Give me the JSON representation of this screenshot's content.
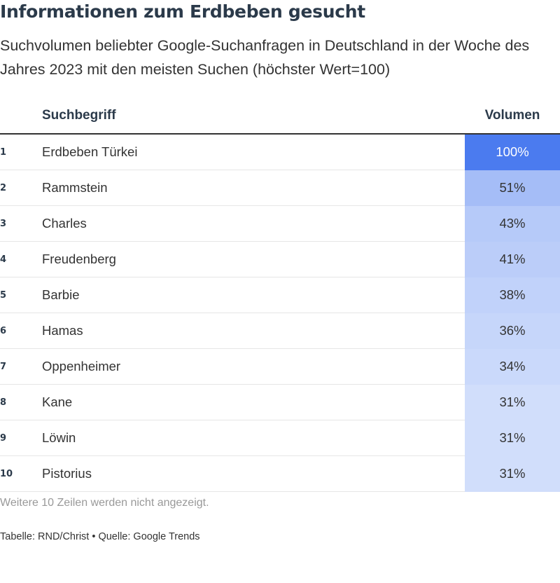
{
  "header": {
    "title": "Informationen zum Erdbeben gesucht",
    "subtitle": "Suchvolumen beliebter Google-Suchanfragen in Deutschland in der Woche des Jahres 2023 mit den meisten Suchen (höchster Wert=100)"
  },
  "chart_data": {
    "type": "table",
    "columns": [
      "",
      "Suchbegriff",
      "Volumen"
    ],
    "rows": [
      {
        "rank": "1",
        "term": "Erdbeben Türkei",
        "volume": 100,
        "volume_label": "100%"
      },
      {
        "rank": "2",
        "term": "Rammstein",
        "volume": 51,
        "volume_label": "51%"
      },
      {
        "rank": "3",
        "term": "Charles",
        "volume": 43,
        "volume_label": "43%"
      },
      {
        "rank": "4",
        "term": "Freudenberg",
        "volume": 41,
        "volume_label": "41%"
      },
      {
        "rank": "5",
        "term": "Barbie",
        "volume": 38,
        "volume_label": "38%"
      },
      {
        "rank": "6",
        "term": "Hamas",
        "volume": 36,
        "volume_label": "36%"
      },
      {
        "rank": "7",
        "term": "Oppenheimer",
        "volume": 34,
        "volume_label": "34%"
      },
      {
        "rank": "8",
        "term": "Kane",
        "volume": 31,
        "volume_label": "31%"
      },
      {
        "rank": "9",
        "term": "Löwin",
        "volume": 31,
        "volume_label": "31%"
      },
      {
        "rank": "10",
        "term": "Pistorius",
        "volume": 31,
        "volume_label": "31%"
      }
    ],
    "colors": {
      "high": "#4b7bef",
      "low": "#d8e3fc"
    }
  },
  "notes": {
    "more_rows": "Weitere 10 Zeilen werden nicht angezeigt.",
    "source": "Tabelle: RND/Christ • Quelle: Google Trends"
  }
}
